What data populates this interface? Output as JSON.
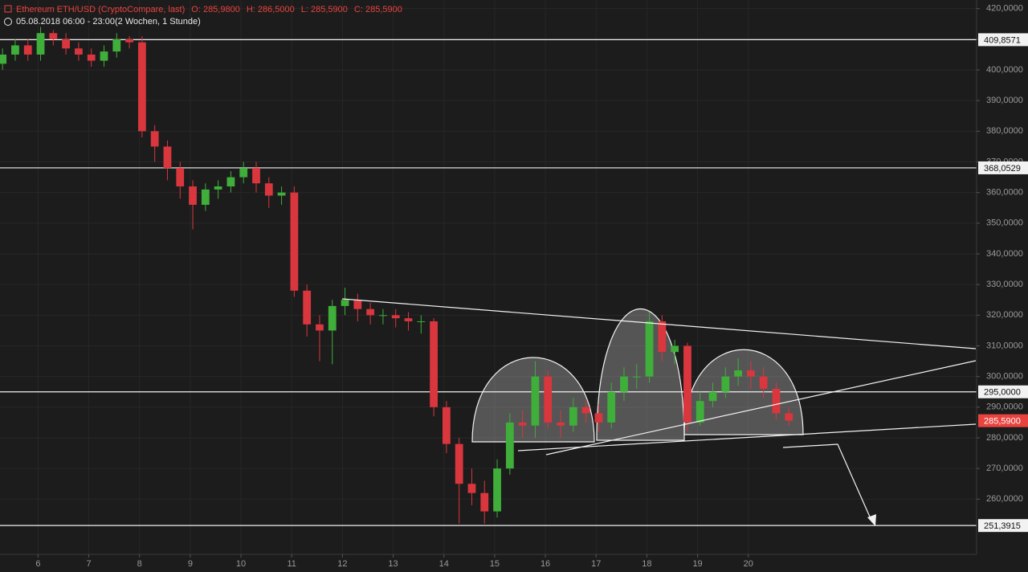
{
  "chart_data": {
    "type": "candlestick",
    "title": "Ethereum ETH/USD (CryptoCompare, last)",
    "ohlc_texts": [
      "O: 285,9800",
      "H: 286,5000",
      "L: 285,5900",
      "C: 285,5900"
    ],
    "period": "05.08.2018 06:00 - 23:00",
    "interval": "(2 Wochen, 1 Stunde)",
    "up_color": "#3fae3a",
    "down_color": "#d9363e",
    "grid": true,
    "xlim": [
      5.25,
      24.5
    ],
    "xticks": [
      6,
      7,
      8,
      9,
      10,
      11,
      12,
      13,
      14,
      15,
      16,
      17,
      18,
      19,
      20
    ],
    "ylim": [
      242,
      422.8
    ],
    "yticks": [
      {
        "value": 420,
        "label": "420,0000"
      },
      {
        "value": 410,
        "label": "410,0000"
      },
      {
        "value": 400,
        "label": "400,0000"
      },
      {
        "value": 390,
        "label": "390,0000"
      },
      {
        "value": 380,
        "label": "380,0000"
      },
      {
        "value": 370,
        "label": "370,0000"
      },
      {
        "value": 360,
        "label": "360,0000"
      },
      {
        "value": 350,
        "label": "350,0000"
      },
      {
        "value": 340,
        "label": "340,0000"
      },
      {
        "value": 330,
        "label": "330,0000"
      },
      {
        "value": 320,
        "label": "320,0000"
      },
      {
        "value": 310,
        "label": "310,0000"
      },
      {
        "value": 300,
        "label": "300,0000"
      },
      {
        "value": 290,
        "label": "290,0000"
      },
      {
        "value": 280,
        "label": "280,0000"
      },
      {
        "value": 270,
        "label": "270,0000"
      },
      {
        "value": 260,
        "label": "260,0000"
      }
    ],
    "levels": [
      {
        "value": 409.8571,
        "label": "409,8571"
      },
      {
        "value": 368.0529,
        "label": "368,0529"
      },
      {
        "value": 295,
        "label": "295,0000"
      },
      {
        "value": 251.3915,
        "label": "251,3915"
      }
    ],
    "last_price": {
      "value": 285.59,
      "label": "285,5900"
    },
    "x": [
      5.3,
      5.55,
      5.8,
      6.05,
      6.3,
      6.55,
      6.8,
      7.05,
      7.3,
      7.55,
      7.8,
      8.05,
      8.3,
      8.55,
      8.8,
      9.05,
      9.3,
      9.55,
      9.8,
      10.05,
      10.3,
      10.55,
      10.8,
      11.05,
      11.3,
      11.55,
      11.8,
      12.05,
      12.3,
      12.55,
      12.8,
      13.05,
      13.3,
      13.55,
      13.8,
      14.05,
      14.3,
      14.55,
      14.8,
      15.05,
      15.3,
      15.55,
      15.8,
      16.05,
      16.3,
      16.55,
      16.8,
      17.05,
      17.3,
      17.55,
      17.8,
      18.05,
      18.3,
      18.55,
      18.8,
      19.05,
      19.3,
      19.55,
      19.8,
      20.05,
      20.3,
      20.55,
      20.8
    ],
    "open": [
      402,
      405,
      408,
      405,
      412,
      410,
      407,
      405,
      403,
      406,
      410,
      409,
      380,
      375,
      368,
      362,
      356,
      361,
      362,
      365,
      368,
      363,
      359,
      360,
      328,
      317,
      315,
      323,
      325,
      322,
      320,
      320,
      319,
      318,
      318,
      290,
      278,
      265,
      262,
      256,
      270,
      285,
      284,
      300,
      285,
      284,
      290,
      288,
      285,
      295,
      300,
      300,
      318,
      308,
      310,
      285,
      292,
      295,
      300,
      302,
      300,
      296,
      288
    ],
    "high": [
      407,
      410,
      410,
      414,
      413,
      412,
      409,
      407,
      408,
      412,
      411,
      411,
      382,
      377,
      370,
      364,
      363,
      364,
      367,
      370,
      370,
      365,
      362,
      362,
      330,
      320,
      325,
      329,
      327,
      324,
      322,
      322,
      321,
      320,
      319,
      292,
      280,
      270,
      266,
      273,
      288,
      289,
      305,
      302,
      289,
      293,
      292,
      291,
      298,
      303,
      304,
      321,
      320,
      312,
      311,
      295,
      298,
      303,
      306,
      305,
      303,
      298,
      290
    ],
    "low": [
      400,
      403,
      403,
      403,
      408,
      405,
      403,
      401,
      401,
      404,
      407,
      378,
      370,
      364,
      358,
      348,
      354,
      358,
      360,
      363,
      360,
      355,
      356,
      326,
      313,
      305,
      304,
      320,
      318,
      317,
      317,
      316,
      315,
      314,
      287,
      275,
      252,
      258,
      252,
      254,
      268,
      280,
      280,
      283,
      280,
      282,
      285,
      282,
      283,
      292,
      296,
      298,
      305,
      304,
      282,
      284,
      290,
      293,
      297,
      296,
      293,
      286,
      284
    ],
    "close": [
      405,
      408,
      405,
      412,
      410,
      407,
      405,
      403,
      406,
      410,
      409,
      380,
      375,
      368,
      362,
      356,
      361,
      362,
      365,
      368,
      363,
      359,
      360,
      328,
      317,
      315,
      323,
      325,
      322,
      320,
      320,
      319,
      318,
      318,
      290,
      278,
      265,
      262,
      256,
      270,
      285,
      284,
      300,
      285,
      284,
      290,
      288,
      285,
      295,
      300,
      300,
      318,
      308,
      310,
      285,
      292,
      295,
      300,
      302,
      300,
      296,
      288,
      285.59
    ]
  }
}
